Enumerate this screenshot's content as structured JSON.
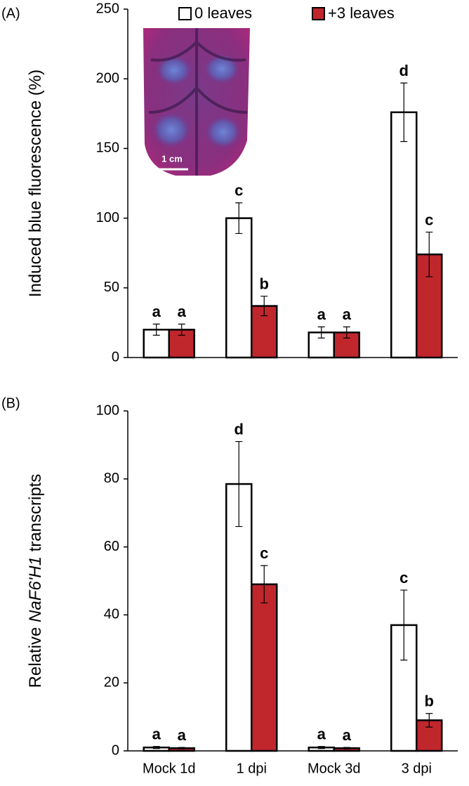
{
  "chart_data": [
    {
      "type": "bar",
      "panel_label": "(A)",
      "y_label": [
        "Induced blue fluorescence (%)"
      ],
      "ylim": [
        0,
        250
      ],
      "yticks": [
        0,
        50,
        100,
        150,
        200,
        250
      ],
      "legend": "top",
      "inset_label": "1 cm",
      "series": [
        {
          "name": "0 leaves",
          "color": "#ffffff",
          "values": [
            20,
            100,
            18,
            176
          ],
          "errors": [
            4,
            11,
            4,
            21
          ],
          "letters": [
            "a",
            "c",
            "a",
            "d"
          ]
        },
        {
          "name": "+3 leaves",
          "color": "#c0272d",
          "values": [
            20,
            37,
            18,
            74
          ],
          "errors": [
            4,
            7,
            4,
            16
          ],
          "letters": [
            "a",
            "b",
            "a",
            "c"
          ]
        }
      ]
    },
    {
      "type": "bar",
      "panel_label": "(B)",
      "y_label": [
        "Relative ",
        "NaF6'H1",
        " transcripts"
      ],
      "ylim": [
        0,
        100
      ],
      "yticks": [
        0,
        20,
        40,
        60,
        80,
        100
      ],
      "categories": [
        "Mock 1d",
        "1 dpi",
        "Mock 3d",
        "3 dpi"
      ],
      "series": [
        {
          "color": "#ffffff",
          "values": [
            1,
            78.5,
            1,
            37
          ],
          "errors": [
            0.3,
            12.5,
            0.3,
            10.3
          ],
          "letters": [
            "a",
            "d",
            "a",
            "c"
          ]
        },
        {
          "color": "#c0272d",
          "values": [
            0.8,
            49,
            0.8,
            9
          ],
          "errors": [
            0.2,
            5.5,
            0.2,
            2
          ],
          "letters": [
            "a",
            "c",
            "a",
            "b"
          ]
        }
      ]
    }
  ]
}
